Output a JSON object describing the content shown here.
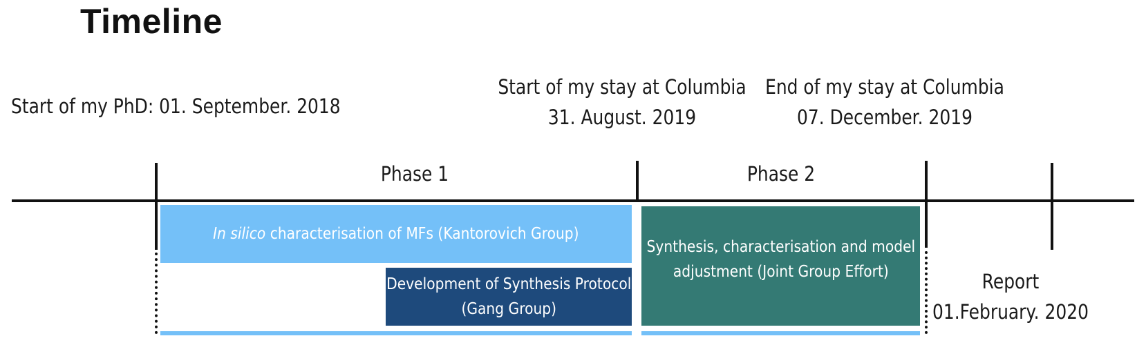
{
  "title": "Timeline",
  "milestones": {
    "phd_start": "Start of my PhD: 01. September. 2018",
    "columbia_start": {
      "line1": "Start of my stay at Columbia",
      "line2": "31. August. 2019"
    },
    "columbia_end": {
      "line1": "End of my stay at Columbia",
      "line2": "07. December. 2019"
    },
    "report": {
      "line1": "Report",
      "line2": "01.February. 2020"
    }
  },
  "phases": {
    "phase1": "Phase 1",
    "phase2": "Phase 2"
  },
  "activities": {
    "in_silico": {
      "italic": "In silico",
      "rest": " characterisation of MFs (Kantorovich Group)"
    },
    "synthesis_protocol": {
      "line1": "Development of Synthesis Protocol",
      "line2": "(Gang Group)"
    },
    "joint_effort": {
      "line1": "Synthesis, characterisation and model",
      "line2": "adjustment (Joint Group Effort)"
    }
  },
  "colors": {
    "light_blue": "#74c0f8",
    "dark_blue": "#1e4a7c",
    "teal": "#347a74",
    "axis": "#111111"
  }
}
